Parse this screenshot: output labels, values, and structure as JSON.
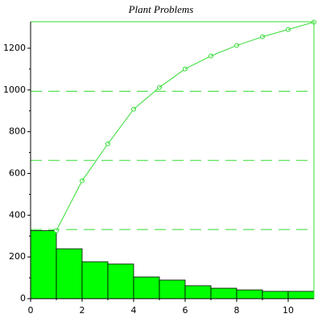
{
  "chart_data": {
    "type": "pareto",
    "title": "Plant Problems",
    "values": [
      326,
      239,
      177,
      166,
      104,
      89,
      62,
      50,
      42,
      35,
      35
    ],
    "color": "#00ff00",
    "line_color": "#33dd33",
    "xlim": [
      0,
      11
    ],
    "xticks": [
      0,
      2,
      4,
      6,
      8,
      10
    ],
    "ylim": [
      0,
      1327
    ],
    "yticks": [
      0,
      200,
      400,
      600,
      800,
      1000,
      1200
    ]
  }
}
